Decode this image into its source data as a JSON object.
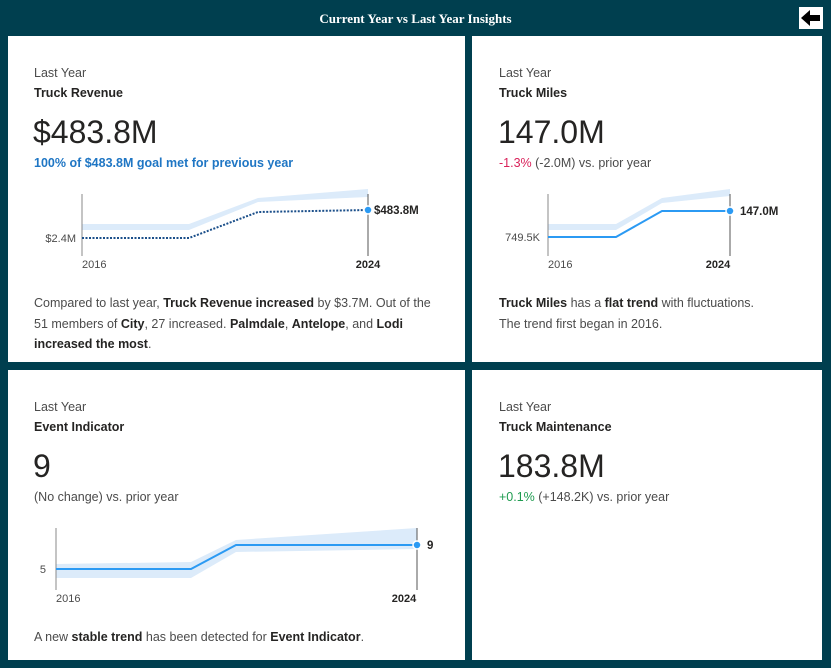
{
  "header": {
    "title": "Current Year vs Last Year Insights",
    "back_icon": "arrow-left-icon"
  },
  "cards": [
    {
      "period": "Last Year",
      "metric": "Truck Revenue",
      "value": "$483.8M",
      "sub": "100% of $483.8M goal met for previous year",
      "chart": {
        "start_label": "$2.4M",
        "end_label": "$483.8M",
        "x_start": "2016",
        "x_end": "2024",
        "line_color": "#1b4f8a",
        "line_style": "dotted"
      },
      "narrative": {
        "p1": "Compared to last year, ",
        "b1": "Truck Revenue increased",
        "p2": " by $3.7M. Out of the 51 members of ",
        "b2": "City",
        "p3": ", 27 increased. ",
        "b3": "Palmdale",
        "p4": ", ",
        "b4": "Antelope",
        "p5": ", and ",
        "b5": "Lodi increased the most",
        "p6": "."
      }
    },
    {
      "period": "Last Year",
      "metric": "Truck Miles",
      "value": "147.0M",
      "change_pct": "-1.3%",
      "change_rest": " (-2.0M) vs. prior year",
      "chart": {
        "start_label": "749.5K",
        "end_label": "147.0M",
        "x_start": "2016",
        "x_end": "2024",
        "line_color": "#2b9af3"
      },
      "narrative": {
        "b1": "Truck Miles",
        "p1": " has a ",
        "b2": "flat trend",
        "p2": " with fluctuations.",
        "p3": "The trend first began in 2016."
      }
    },
    {
      "period": "Last Year",
      "metric": "Event Indicator",
      "value": "9",
      "sub": "(No change) vs. prior year",
      "chart": {
        "start_label": "5",
        "end_label": "9",
        "x_start": "2016",
        "x_end": "2024",
        "line_color": "#2b9af3"
      },
      "narrative": {
        "p1": "A new ",
        "b1": "stable trend",
        "p2": " has been detected for ",
        "b2": "Event Indicator",
        "p3": "."
      }
    },
    {
      "period": "Last Year",
      "metric": "Truck Maintenance",
      "value": "183.8M",
      "change_pct": "+0.1%",
      "change_rest": " (+148.2K) vs. prior year"
    }
  ],
  "colors": {
    "background": "#003f4f",
    "accent_blue": "#2b9af3",
    "goal_text": "#1f76c4",
    "negative": "#d9225a",
    "positive": "#1f9c50"
  }
}
